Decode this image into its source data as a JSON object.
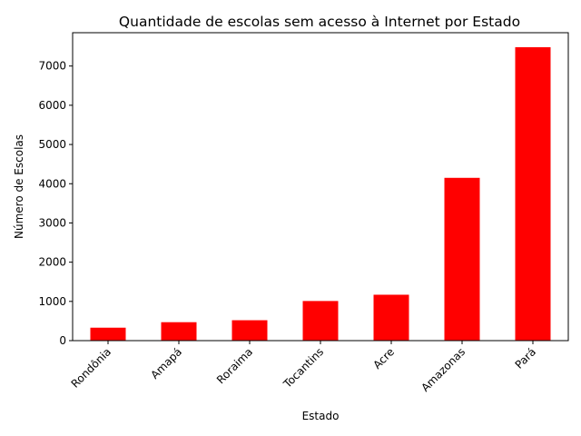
{
  "chart_data": {
    "type": "bar",
    "title": "Quantidade de escolas sem acesso à Internet por Estado",
    "xlabel": "Estado",
    "ylabel": "Número de Escolas",
    "categories": [
      "Rondônia",
      "Amapá",
      "Roraima",
      "Tocantins",
      "Acre",
      "Amazonas",
      "Pará"
    ],
    "values": [
      330,
      470,
      520,
      1010,
      1170,
      4150,
      7480
    ],
    "yticks": [
      0,
      1000,
      2000,
      3000,
      4000,
      5000,
      6000,
      7000
    ],
    "ylim": [
      0,
      7850
    ],
    "grid": false,
    "bar_color": "#ff0000"
  }
}
